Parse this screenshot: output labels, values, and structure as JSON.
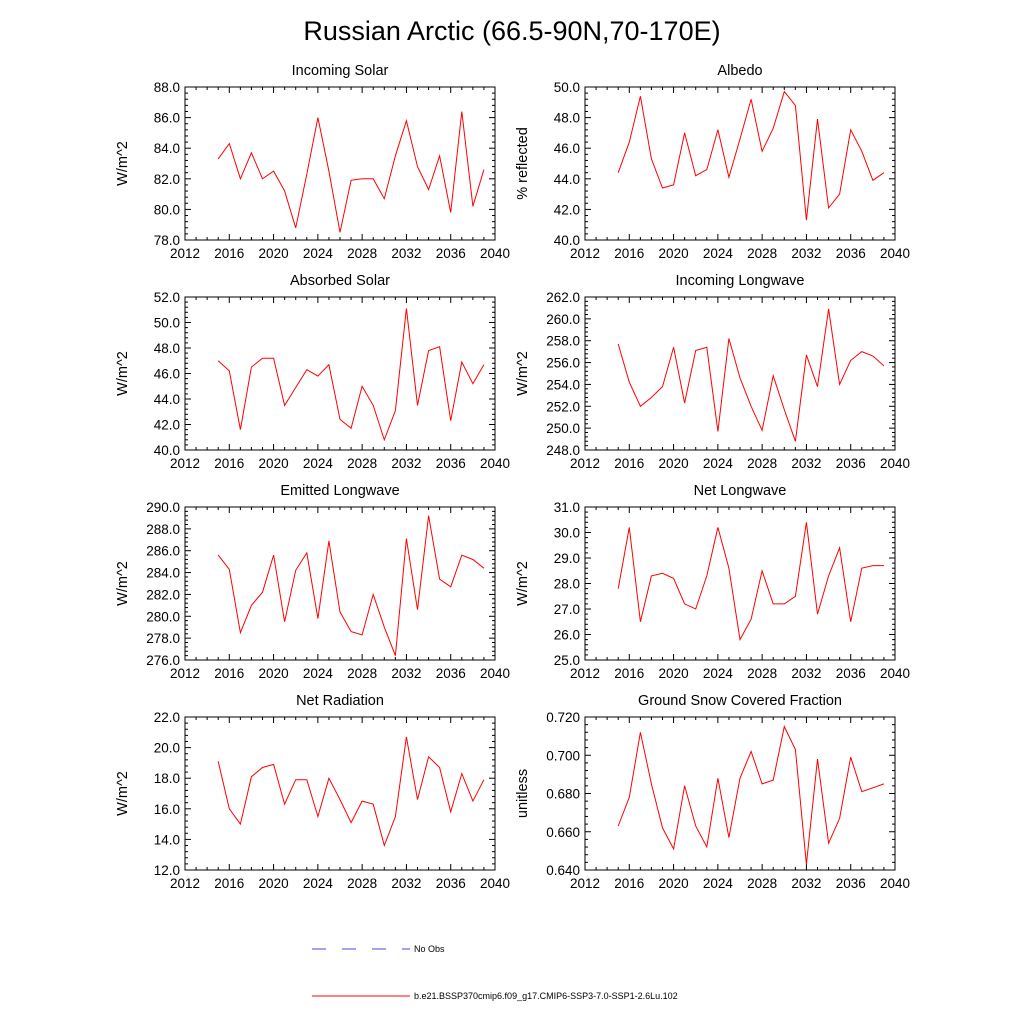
{
  "title": "Russian Arctic (66.5-90N,70-170E)",
  "legend": {
    "entries": [
      {
        "label": "No Obs",
        "style": "dashed",
        "color": "#4a4ad8"
      },
      {
        "label": "b.e21.BSSP370cmip6.f09_g17.CMIP6-SSP3-7.0-SSP1-2.6Lu.102",
        "style": "solid",
        "color": "#ff0000"
      }
    ]
  },
  "chart_data": [
    {
      "type": "line",
      "title": "Incoming Solar",
      "ylabel": "W/m^2",
      "xlim": [
        2012,
        2040
      ],
      "xticks": [
        "2012",
        "2016",
        "2020",
        "2024",
        "2028",
        "2032",
        "2036",
        "2040"
      ],
      "ylim": [
        78,
        88
      ],
      "yticks": [
        "78.0",
        "80.0",
        "82.0",
        "84.0",
        "86.0",
        "88.0"
      ],
      "x": [
        2015,
        2016,
        2017,
        2018,
        2019,
        2020,
        2021,
        2022,
        2023,
        2024,
        2025,
        2026,
        2027,
        2028,
        2029,
        2030,
        2031,
        2032,
        2033,
        2034,
        2035,
        2036,
        2037,
        2038,
        2039
      ],
      "series": [
        {
          "color": "#ff0000",
          "values": [
            83.3,
            84.3,
            82.0,
            83.7,
            82.0,
            82.5,
            81.2,
            78.8,
            82.3,
            86.0,
            82.5,
            78.5,
            81.9,
            82.0,
            82.0,
            80.7,
            83.5,
            85.8,
            82.8,
            81.3,
            83.5,
            79.8,
            86.4,
            80.2,
            82.6
          ]
        }
      ]
    },
    {
      "type": "line",
      "title": "Albedo",
      "ylabel": "% reflected",
      "xlim": [
        2012,
        2040
      ],
      "xticks": [
        "2012",
        "2016",
        "2020",
        "2024",
        "2028",
        "2032",
        "2036",
        "2040"
      ],
      "ylim": [
        40,
        50
      ],
      "yticks": [
        "40.0",
        "42.0",
        "44.0",
        "46.0",
        "48.0",
        "50.0"
      ],
      "x": [
        2015,
        2016,
        2017,
        2018,
        2019,
        2020,
        2021,
        2022,
        2023,
        2024,
        2025,
        2026,
        2027,
        2028,
        2029,
        2030,
        2031,
        2032,
        2033,
        2034,
        2035,
        2036,
        2037,
        2038,
        2039
      ],
      "series": [
        {
          "color": "#ff0000",
          "values": [
            44.4,
            46.4,
            49.4,
            45.3,
            43.4,
            43.6,
            47.0,
            44.2,
            44.6,
            47.2,
            44.1,
            46.6,
            49.2,
            45.8,
            47.3,
            49.7,
            48.8,
            41.3,
            47.9,
            42.1,
            43.0,
            47.2,
            45.8,
            43.9,
            44.4
          ]
        }
      ]
    },
    {
      "type": "line",
      "title": "Absorbed Solar",
      "ylabel": "W/m^2",
      "xlim": [
        2012,
        2040
      ],
      "xticks": [
        "2012",
        "2016",
        "2020",
        "2024",
        "2028",
        "2032",
        "2036",
        "2040"
      ],
      "ylim": [
        40,
        52
      ],
      "yticks": [
        "40.0",
        "42.0",
        "44.0",
        "46.0",
        "48.0",
        "50.0",
        "52.0"
      ],
      "x": [
        2015,
        2016,
        2017,
        2018,
        2019,
        2020,
        2021,
        2022,
        2023,
        2024,
        2025,
        2026,
        2027,
        2028,
        2029,
        2030,
        2031,
        2032,
        2033,
        2034,
        2035,
        2036,
        2037,
        2038,
        2039
      ],
      "series": [
        {
          "color": "#ff0000",
          "values": [
            47.0,
            46.2,
            41.6,
            46.5,
            47.2,
            47.2,
            43.5,
            44.9,
            46.3,
            45.8,
            46.7,
            42.4,
            41.7,
            45.0,
            43.5,
            40.8,
            43.1,
            51.1,
            43.5,
            47.8,
            48.1,
            42.3,
            46.9,
            45.2,
            46.7
          ]
        }
      ]
    },
    {
      "type": "line",
      "title": "Incoming Longwave",
      "ylabel": "W/m^2",
      "xlim": [
        2012,
        2040
      ],
      "xticks": [
        "2012",
        "2016",
        "2020",
        "2024",
        "2028",
        "2032",
        "2036",
        "2040"
      ],
      "ylim": [
        248,
        262
      ],
      "yticks": [
        "248.0",
        "250.0",
        "252.0",
        "254.0",
        "256.0",
        "258.0",
        "260.0",
        "262.0"
      ],
      "x": [
        2015,
        2016,
        2017,
        2018,
        2019,
        2020,
        2021,
        2022,
        2023,
        2024,
        2025,
        2026,
        2027,
        2028,
        2029,
        2030,
        2031,
        2032,
        2033,
        2034,
        2035,
        2036,
        2037,
        2038,
        2039
      ],
      "series": [
        {
          "color": "#ff0000",
          "values": [
            257.7,
            254.2,
            252.0,
            252.8,
            253.8,
            257.4,
            252.3,
            257.1,
            257.4,
            249.7,
            258.2,
            254.6,
            252.0,
            249.8,
            254.8,
            251.7,
            248.8,
            256.7,
            253.8,
            260.9,
            254.0,
            256.2,
            257.0,
            256.6,
            255.7
          ]
        }
      ]
    },
    {
      "type": "line",
      "title": "Emitted Longwave",
      "ylabel": "W/m^2",
      "xlim": [
        2012,
        2040
      ],
      "xticks": [
        "2012",
        "2016",
        "2020",
        "2024",
        "2028",
        "2032",
        "2036",
        "2040"
      ],
      "ylim": [
        276,
        290
      ],
      "yticks": [
        "276.0",
        "278.0",
        "280.0",
        "282.0",
        "284.0",
        "286.0",
        "288.0",
        "290.0"
      ],
      "x": [
        2015,
        2016,
        2017,
        2018,
        2019,
        2020,
        2021,
        2022,
        2023,
        2024,
        2025,
        2026,
        2027,
        2028,
        2029,
        2030,
        2031,
        2032,
        2033,
        2034,
        2035,
        2036,
        2037,
        2038,
        2039
      ],
      "series": [
        {
          "color": "#ff0000",
          "values": [
            285.6,
            284.3,
            278.5,
            281.0,
            282.2,
            285.6,
            279.5,
            284.2,
            285.8,
            279.8,
            286.9,
            280.4,
            278.6,
            278.3,
            282.0,
            279.0,
            276.4,
            287.1,
            280.6,
            289.2,
            283.4,
            282.7,
            285.6,
            285.2,
            284.4
          ]
        }
      ]
    },
    {
      "type": "line",
      "title": "Net Longwave",
      "ylabel": "W/m^2",
      "xlim": [
        2012,
        2040
      ],
      "xticks": [
        "2012",
        "2016",
        "2020",
        "2024",
        "2028",
        "2032",
        "2036",
        "2040"
      ],
      "ylim": [
        25,
        31
      ],
      "yticks": [
        "25.0",
        "26.0",
        "27.0",
        "28.0",
        "29.0",
        "30.0",
        "31.0"
      ],
      "x": [
        2015,
        2016,
        2017,
        2018,
        2019,
        2020,
        2021,
        2022,
        2023,
        2024,
        2025,
        2026,
        2027,
        2028,
        2029,
        2030,
        2031,
        2032,
        2033,
        2034,
        2035,
        2036,
        2037,
        2038,
        2039
      ],
      "series": [
        {
          "color": "#ff0000",
          "values": [
            27.8,
            30.2,
            26.5,
            28.3,
            28.4,
            28.2,
            27.2,
            27.0,
            28.3,
            30.2,
            28.6,
            25.8,
            26.6,
            28.5,
            27.2,
            27.2,
            27.5,
            30.4,
            26.8,
            28.3,
            29.4,
            26.5,
            28.6,
            28.7,
            28.7
          ]
        }
      ]
    },
    {
      "type": "line",
      "title": "Net Radiation",
      "ylabel": "W/m^2",
      "xlim": [
        2012,
        2040
      ],
      "xticks": [
        "2012",
        "2016",
        "2020",
        "2024",
        "2028",
        "2032",
        "2036",
        "2040"
      ],
      "ylim": [
        12,
        22
      ],
      "yticks": [
        "12.0",
        "14.0",
        "16.0",
        "18.0",
        "20.0",
        "22.0"
      ],
      "x": [
        2015,
        2016,
        2017,
        2018,
        2019,
        2020,
        2021,
        2022,
        2023,
        2024,
        2025,
        2026,
        2027,
        2028,
        2029,
        2030,
        2031,
        2032,
        2033,
        2034,
        2035,
        2036,
        2037,
        2038,
        2039
      ],
      "series": [
        {
          "color": "#ff0000",
          "values": [
            19.1,
            16.0,
            15.0,
            18.1,
            18.7,
            18.9,
            16.3,
            17.9,
            17.9,
            15.5,
            18.0,
            16.6,
            15.1,
            16.5,
            16.3,
            13.6,
            15.5,
            20.7,
            16.6,
            19.4,
            18.7,
            15.8,
            18.3,
            16.5,
            17.9
          ]
        }
      ]
    },
    {
      "type": "line",
      "title": "Ground Snow Covered Fraction",
      "ylabel": "unitless",
      "xlim": [
        2012,
        2040
      ],
      "xticks": [
        "2012",
        "2016",
        "2020",
        "2024",
        "2028",
        "2032",
        "2036",
        "2040"
      ],
      "ylim": [
        0.64,
        0.72
      ],
      "yticks": [
        "0.640",
        "0.660",
        "0.680",
        "0.700",
        "0.720"
      ],
      "x": [
        2015,
        2016,
        2017,
        2018,
        2019,
        2020,
        2021,
        2022,
        2023,
        2024,
        2025,
        2026,
        2027,
        2028,
        2029,
        2030,
        2031,
        2032,
        2033,
        2034,
        2035,
        2036,
        2037,
        2038,
        2039
      ],
      "series": [
        {
          "color": "#ff0000",
          "values": [
            0.663,
            0.678,
            0.712,
            0.685,
            0.662,
            0.651,
            0.684,
            0.663,
            0.652,
            0.688,
            0.657,
            0.688,
            0.702,
            0.685,
            0.687,
            0.715,
            0.703,
            0.643,
            0.698,
            0.654,
            0.667,
            0.699,
            0.681,
            0.683,
            0.685
          ]
        }
      ]
    }
  ]
}
